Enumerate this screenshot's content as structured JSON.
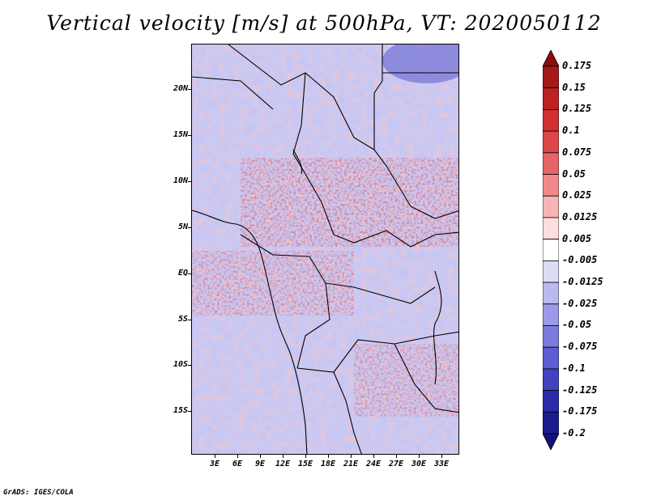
{
  "title": "Vertical velocity [m/s] at 500hPa, VT: 2020050112",
  "footer": "GrADS: IGES/COLA",
  "axes": {
    "lat_labels": [
      "20N",
      "15N",
      "10N",
      "5N",
      "EQ",
      "5S",
      "10S",
      "15S"
    ],
    "lon_labels": [
      "3E",
      "6E",
      "9E",
      "12E",
      "15E",
      "18E",
      "21E",
      "24E",
      "27E",
      "30E",
      "33E"
    ]
  },
  "colorbar": {
    "labels": [
      "0.175",
      "0.15",
      "0.125",
      "0.1",
      "0.075",
      "0.05",
      "0.025",
      "0.0125",
      "0.005",
      "-0.005",
      "-0.0125",
      "-0.025",
      "-0.05",
      "-0.075",
      "-0.1",
      "-0.125",
      "-0.175",
      "-0.2"
    ],
    "colors": [
      "#8b0d0d",
      "#a51818",
      "#bd2222",
      "#d03030",
      "#dd4646",
      "#e66464",
      "#f08a8a",
      "#f7b4b4",
      "#fcdede",
      "#ffffff",
      "#dcdcf6",
      "#babaf0",
      "#9a9ae8",
      "#7c7cde",
      "#5e5ed2",
      "#4343c0",
      "#2c2caa",
      "#1c1c90",
      "#12127a"
    ]
  }
}
